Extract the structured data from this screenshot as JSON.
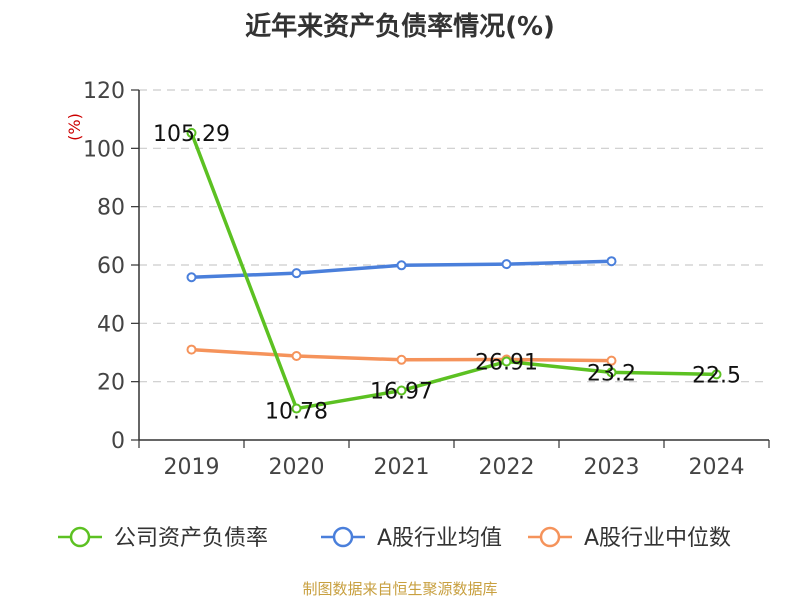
{
  "title": "近年来资产负债率情况(%)",
  "source": "制图数据来自恒生聚源数据库",
  "chart_data": {
    "type": "line",
    "title": "近年来资产负债率情况(%)",
    "ylabel": "(%)",
    "xlabel": "",
    "categories": [
      "2019",
      "2020",
      "2021",
      "2022",
      "2023",
      "2024"
    ],
    "ylim": [
      0,
      120
    ],
    "yticks": [
      0,
      20,
      40,
      60,
      80,
      100,
      120
    ],
    "grid": true,
    "legend_position": "bottom",
    "series": [
      {
        "name": "公司资产负债率",
        "color": "#5cc122",
        "values": [
          105.29,
          10.78,
          16.97,
          26.91,
          23.2,
          22.5
        ],
        "labels": [
          "105.29",
          "10.78",
          "16.97",
          "26.91",
          "23.2",
          "22.5"
        ]
      },
      {
        "name": "A股行业均值",
        "color": "#4a7fdb",
        "values": [
          55.8,
          57.2,
          59.9,
          60.3,
          61.3,
          null
        ]
      },
      {
        "name": "A股行业中位数",
        "color": "#f5935b",
        "values": [
          31.0,
          28.8,
          27.5,
          27.6,
          27.2,
          null
        ]
      }
    ]
  }
}
